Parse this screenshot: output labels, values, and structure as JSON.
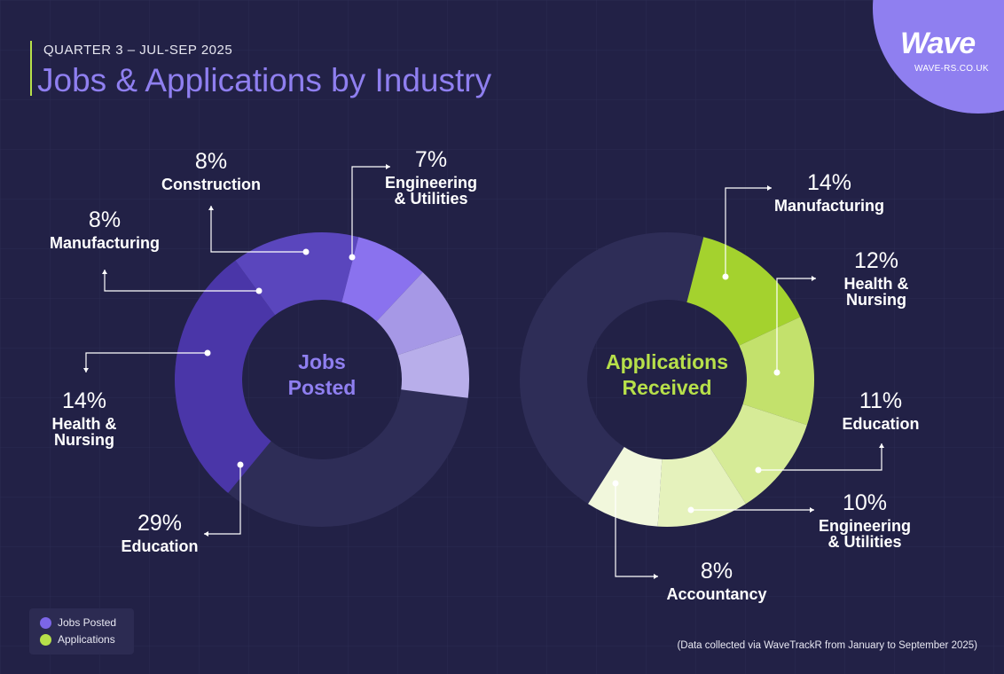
{
  "header": {
    "eyebrow": "QUARTER 3 – JUL-SEP 2025",
    "title": "Jobs & Applications by Industry"
  },
  "brand": {
    "name": "Wave",
    "url": "WAVE-RS.CO.UK"
  },
  "legend": [
    {
      "label": "Jobs Posted",
      "color": "#7c66e8"
    },
    {
      "label": "Applications",
      "color": "#b7e04a"
    }
  ],
  "footnote": "(Data collected via WaveTrackR from January to September 2025)",
  "chart_data": [
    {
      "type": "pie",
      "center_label": [
        "Jobs",
        "Posted"
      ],
      "center_color": "#8f7ff0",
      "start_percent": 61,
      "remainder_color": "#2e2d57",
      "slices": [
        {
          "name": [
            "Education"
          ],
          "value": 29,
          "color": "#4a36a8"
        },
        {
          "name": [
            "Health &",
            "Nursing"
          ],
          "value": 14,
          "color": "#5a46bd"
        },
        {
          "name": [
            "Manufacturing"
          ],
          "value": 8,
          "color": "#8a72ee"
        },
        {
          "name": [
            "Construction"
          ],
          "value": 8,
          "color": "#a698e6"
        },
        {
          "name": [
            "Engineering",
            "& Utilities"
          ],
          "value": 7,
          "color": "#b8aeea"
        }
      ]
    },
    {
      "type": "pie",
      "center_label": [
        "Applications",
        "Received"
      ],
      "center_color": "#b7e04a",
      "start_percent": 4,
      "remainder_color": "#2e2d57",
      "slices": [
        {
          "name": [
            "Manufacturing"
          ],
          "value": 14,
          "color": "#a4d22e"
        },
        {
          "name": [
            "Health &",
            "Nursing"
          ],
          "value": 12,
          "color": "#c3e16c"
        },
        {
          "name": [
            "Education"
          ],
          "value": 11,
          "color": "#d6eb97"
        },
        {
          "name": [
            "Engineering",
            "& Utilities"
          ],
          "value": 10,
          "color": "#e5f2bc"
        },
        {
          "name": [
            "Accountancy"
          ],
          "value": 8,
          "color": "#f1f7dc"
        }
      ]
    }
  ]
}
